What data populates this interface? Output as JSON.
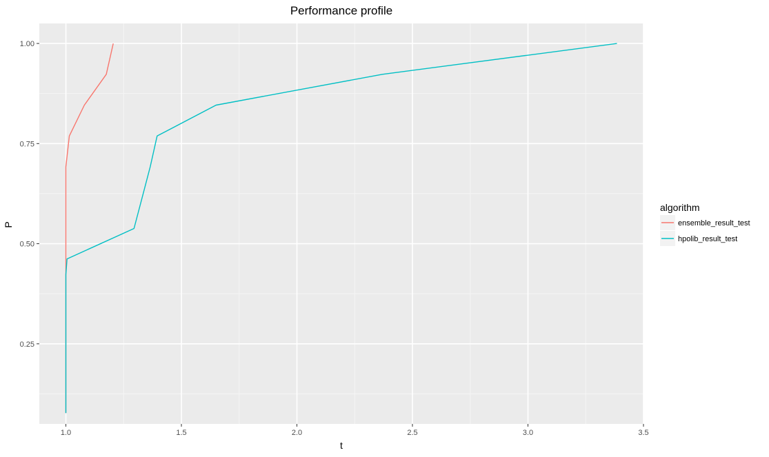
{
  "chart_data": {
    "type": "line",
    "title": "Performance profile",
    "xlabel": "t",
    "ylabel": "P",
    "xlim": [
      0.885,
      3.5
    ],
    "ylim": [
      0.05,
      1.05
    ],
    "x_ticks": [
      1.0,
      1.5,
      2.0,
      2.5,
      3.0,
      3.5
    ],
    "x_tick_labels": [
      "1.0",
      "1.5",
      "2.0",
      "2.5",
      "3.0",
      "3.5"
    ],
    "y_ticks": [
      0.25,
      0.5,
      0.75,
      1.0
    ],
    "y_tick_labels": [
      "0.25",
      "0.50",
      "0.75",
      "1.00"
    ],
    "grid": true,
    "legend": {
      "title": "algorithm",
      "position": "right"
    },
    "series": [
      {
        "name": "ensemble_result_test",
        "color": "#F8766D",
        "x": [
          1.0,
          1.0,
          1.0,
          1.0,
          1.0,
          1.0,
          1.0,
          1.0,
          1.015,
          1.08,
          1.175,
          1.205
        ],
        "y": [
          0.077,
          0.154,
          0.231,
          0.308,
          0.385,
          0.462,
          0.538,
          0.692,
          0.769,
          0.846,
          0.923,
          1.0
        ]
      },
      {
        "name": "hpolib_result_test",
        "color": "#00BFC4",
        "x": [
          1.0,
          1.0,
          1.0,
          1.0,
          1.0,
          1.0,
          1.005,
          1.295,
          1.33,
          1.365,
          1.395,
          1.65,
          2.37,
          3.385
        ],
        "y": [
          0.077,
          0.154,
          0.231,
          0.308,
          0.385,
          0.423,
          0.462,
          0.538,
          0.615,
          0.692,
          0.769,
          0.846,
          0.923,
          1.0
        ]
      }
    ]
  }
}
